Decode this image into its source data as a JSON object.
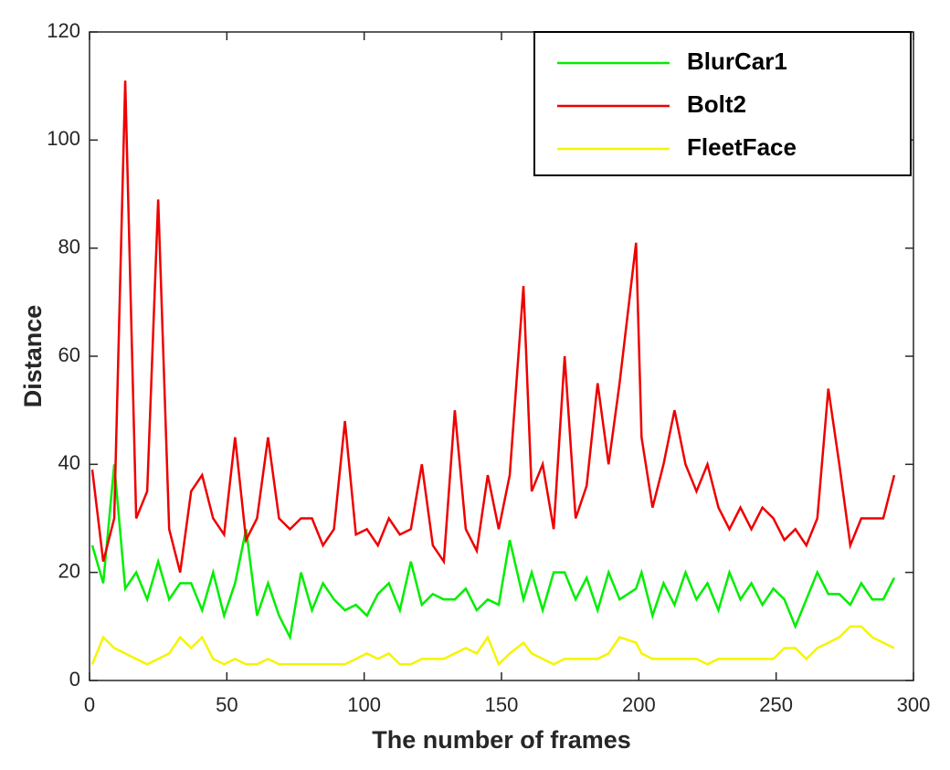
{
  "chart_data": {
    "type": "line",
    "xlabel": "The number of frames",
    "ylabel": "Distance",
    "x": [
      1,
      5,
      9,
      13,
      17,
      21,
      25,
      29,
      33,
      37,
      41,
      45,
      49,
      53,
      57,
      61,
      65,
      69,
      73,
      77,
      81,
      85,
      89,
      93,
      97,
      101,
      105,
      109,
      113,
      117,
      121,
      125,
      129,
      133,
      137,
      141,
      145,
      149,
      153,
      158,
      161,
      165,
      169,
      173,
      177,
      181,
      185,
      189,
      193,
      199,
      201,
      205,
      209,
      213,
      217,
      221,
      225,
      229,
      233,
      237,
      241,
      245,
      249,
      253,
      257,
      261,
      265,
      269,
      273,
      277,
      281,
      285,
      289,
      293
    ],
    "series": [
      {
        "name": "BlurCar1",
        "color": "#00ee00",
        "values": [
          25,
          18,
          40,
          17,
          20,
          15,
          22,
          15,
          18,
          18,
          13,
          20,
          12,
          18,
          28,
          12,
          18,
          12,
          8,
          20,
          13,
          18,
          15,
          13,
          14,
          12,
          16,
          18,
          13,
          22,
          14,
          16,
          15,
          15,
          17,
          13,
          15,
          14,
          26,
          15,
          20,
          13,
          20,
          20,
          15,
          19,
          13,
          20,
          15,
          17,
          20,
          12,
          18,
          14,
          20,
          15,
          18,
          13,
          20,
          15,
          18,
          14,
          17,
          15,
          10,
          15,
          20,
          16,
          16,
          14,
          18,
          15,
          15,
          19
        ]
      },
      {
        "name": "Bolt2",
        "color": "#ee0000",
        "values": [
          39,
          22,
          30,
          111,
          30,
          35,
          89,
          28,
          20,
          35,
          38,
          30,
          27,
          45,
          26,
          30,
          45,
          30,
          28,
          30,
          30,
          25,
          28,
          48,
          27,
          28,
          25,
          30,
          27,
          28,
          40,
          25,
          22,
          50,
          28,
          24,
          38,
          28,
          38,
          73,
          35,
          40,
          28,
          60,
          30,
          36,
          55,
          40,
          55,
          81,
          45,
          32,
          40,
          50,
          40,
          35,
          40,
          32,
          28,
          32,
          28,
          32,
          30,
          26,
          28,
          25,
          30,
          54,
          40,
          25,
          30,
          30,
          30,
          38
        ]
      },
      {
        "name": "FleetFace",
        "color": "#f5f500",
        "values": [
          3,
          8,
          6,
          5,
          4,
          3,
          4,
          5,
          8,
          6,
          8,
          4,
          3,
          4,
          3,
          3,
          4,
          3,
          3,
          3,
          3,
          3,
          3,
          3,
          4,
          5,
          4,
          5,
          3,
          3,
          4,
          4,
          4,
          5,
          6,
          5,
          8,
          3,
          5,
          7,
          5,
          4,
          3,
          4,
          4,
          4,
          4,
          5,
          8,
          7,
          5,
          4,
          4,
          4,
          4,
          4,
          3,
          4,
          4,
          4,
          4,
          4,
          4,
          6,
          6,
          4,
          6,
          7,
          8,
          10,
          10,
          8,
          7,
          6
        ]
      }
    ],
    "xlim": [
      0,
      300
    ],
    "xticks": [
      0,
      50,
      100,
      150,
      200,
      250,
      300
    ],
    "ylim": [
      0,
      120
    ],
    "yticks": [
      0,
      20,
      40,
      60,
      80,
      100,
      120
    ],
    "legend": "upper right"
  }
}
